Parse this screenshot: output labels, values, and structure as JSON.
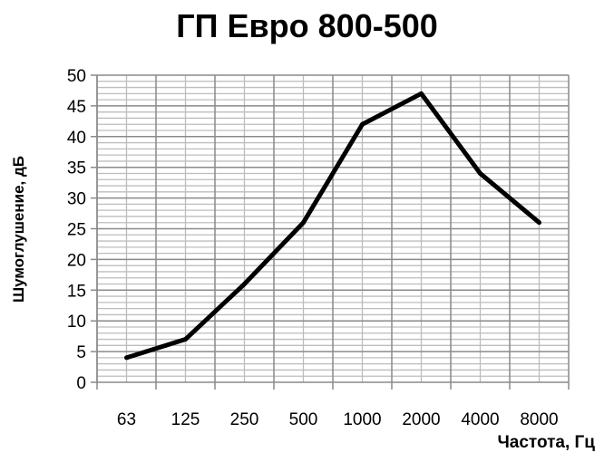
{
  "chart_data": {
    "type": "line",
    "title": "ГП Евро 800-500",
    "xlabel": "Частота, Гц",
    "ylabel": "Шумоглушение, дБ",
    "categories": [
      "63",
      "125",
      "250",
      "500",
      "1000",
      "2000",
      "4000",
      "8000"
    ],
    "series": [
      {
        "name": "ГП Евро 800-500",
        "values": [
          4,
          7,
          16,
          26,
          42,
          47,
          34,
          26
        ],
        "color": "#000000"
      }
    ],
    "ylim": [
      0,
      50
    ],
    "yticks": [
      0,
      5,
      10,
      15,
      20,
      25,
      30,
      35,
      40,
      45,
      50
    ],
    "grid": true,
    "legend": "none"
  }
}
